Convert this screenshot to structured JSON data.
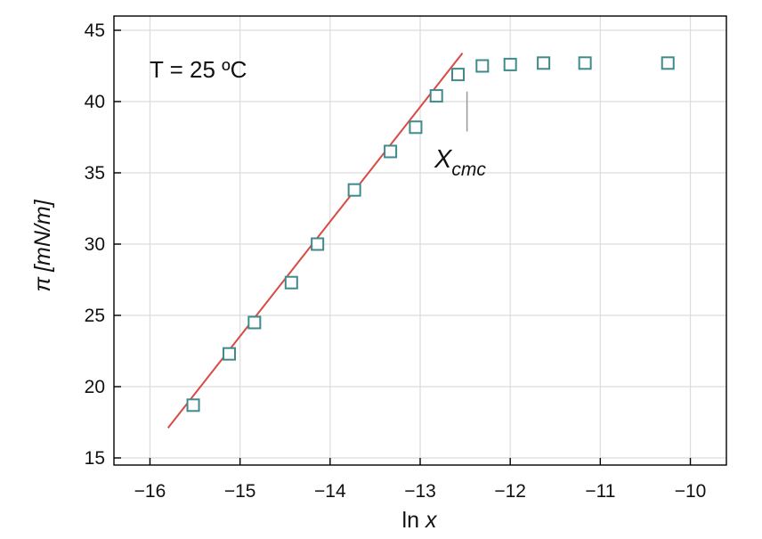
{
  "chart_data": {
    "type": "scatter",
    "xlabel_prefix": "ln ",
    "xlabel_var": "x",
    "ylabel_symbol": "π",
    "ylabel_units": "[mN/m]",
    "xlim": [
      -16.4,
      -9.6
    ],
    "ylim": [
      14.5,
      46
    ],
    "xticks": [
      -16,
      -15,
      -14,
      -13,
      -12,
      -11,
      -10
    ],
    "xtick_labels": [
      "−16",
      "−15",
      "−14",
      "−13",
      "−12",
      "−11",
      "−10"
    ],
    "yticks": [
      15,
      20,
      25,
      30,
      35,
      40,
      45
    ],
    "ytick_labels": [
      "15",
      "20",
      "25",
      "30",
      "35",
      "40",
      "45"
    ],
    "grid": true,
    "series": [
      {
        "marker": "open-square",
        "color": "#3f8a8c",
        "x": [
          -15.52,
          -15.12,
          -14.84,
          -14.43,
          -14.14,
          -13.73,
          -13.33,
          -13.05,
          -12.82,
          -12.58,
          -12.31,
          -12.0,
          -11.63,
          -11.17,
          -10.25
        ],
        "y": [
          18.7,
          22.3,
          24.5,
          27.3,
          30.0,
          33.8,
          36.5,
          38.2,
          40.4,
          41.9,
          42.5,
          42.6,
          42.7,
          42.7,
          42.7
        ]
      }
    ],
    "fit_line": {
      "color": "#d84a44",
      "x": [
        -15.8,
        -12.53
      ],
      "y": [
        17.1,
        43.4
      ]
    },
    "annotations": {
      "temperature": "T = 25 ºC",
      "cmc_main": "X",
      "cmc_sub": "cmc",
      "cmc_x": -12.48,
      "cmc_y_top": 40.7,
      "cmc_y_bottom": 37.9
    }
  }
}
